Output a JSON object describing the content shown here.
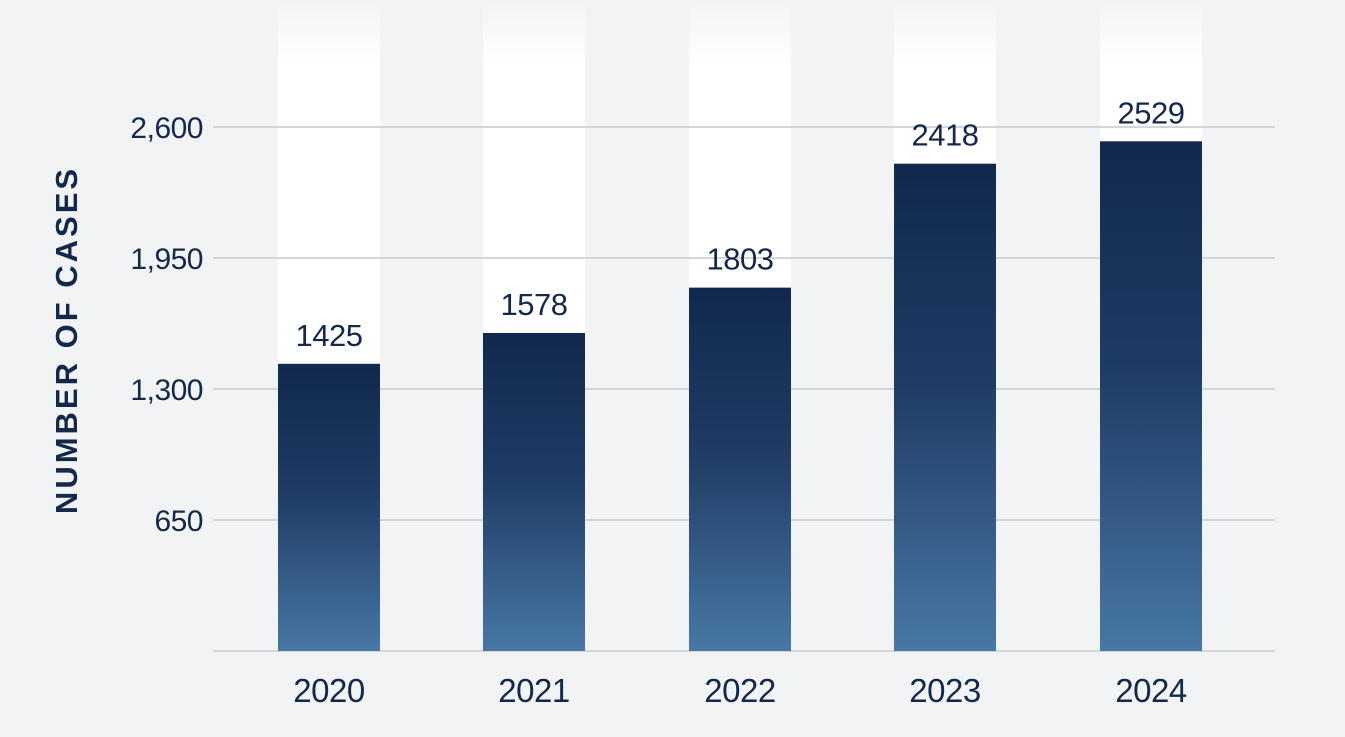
{
  "chart_data": {
    "type": "bar",
    "categories": [
      "2020",
      "2021",
      "2022",
      "2023",
      "2024"
    ],
    "values": [
      1425,
      1578,
      1803,
      2418,
      2529
    ],
    "data_labels": [
      "1425",
      "1578",
      "1803",
      "2418",
      "2529"
    ],
    "ylabel": "NUMBER OF CASES",
    "xlabel": "",
    "ylim": [
      0,
      2600
    ],
    "yticks": [
      650,
      1300,
      1950,
      2600
    ],
    "ytick_labels": [
      "650",
      "1,300",
      "1,950",
      "2,600"
    ],
    "grid": true,
    "legend": "none"
  },
  "colors": {
    "background": "#f2f3f5",
    "bar_top": "#12294f",
    "bar_bottom": "#4878a6",
    "text": "#14284a",
    "grid": "#d3d5d9",
    "column_highlight": "#ffffff"
  }
}
